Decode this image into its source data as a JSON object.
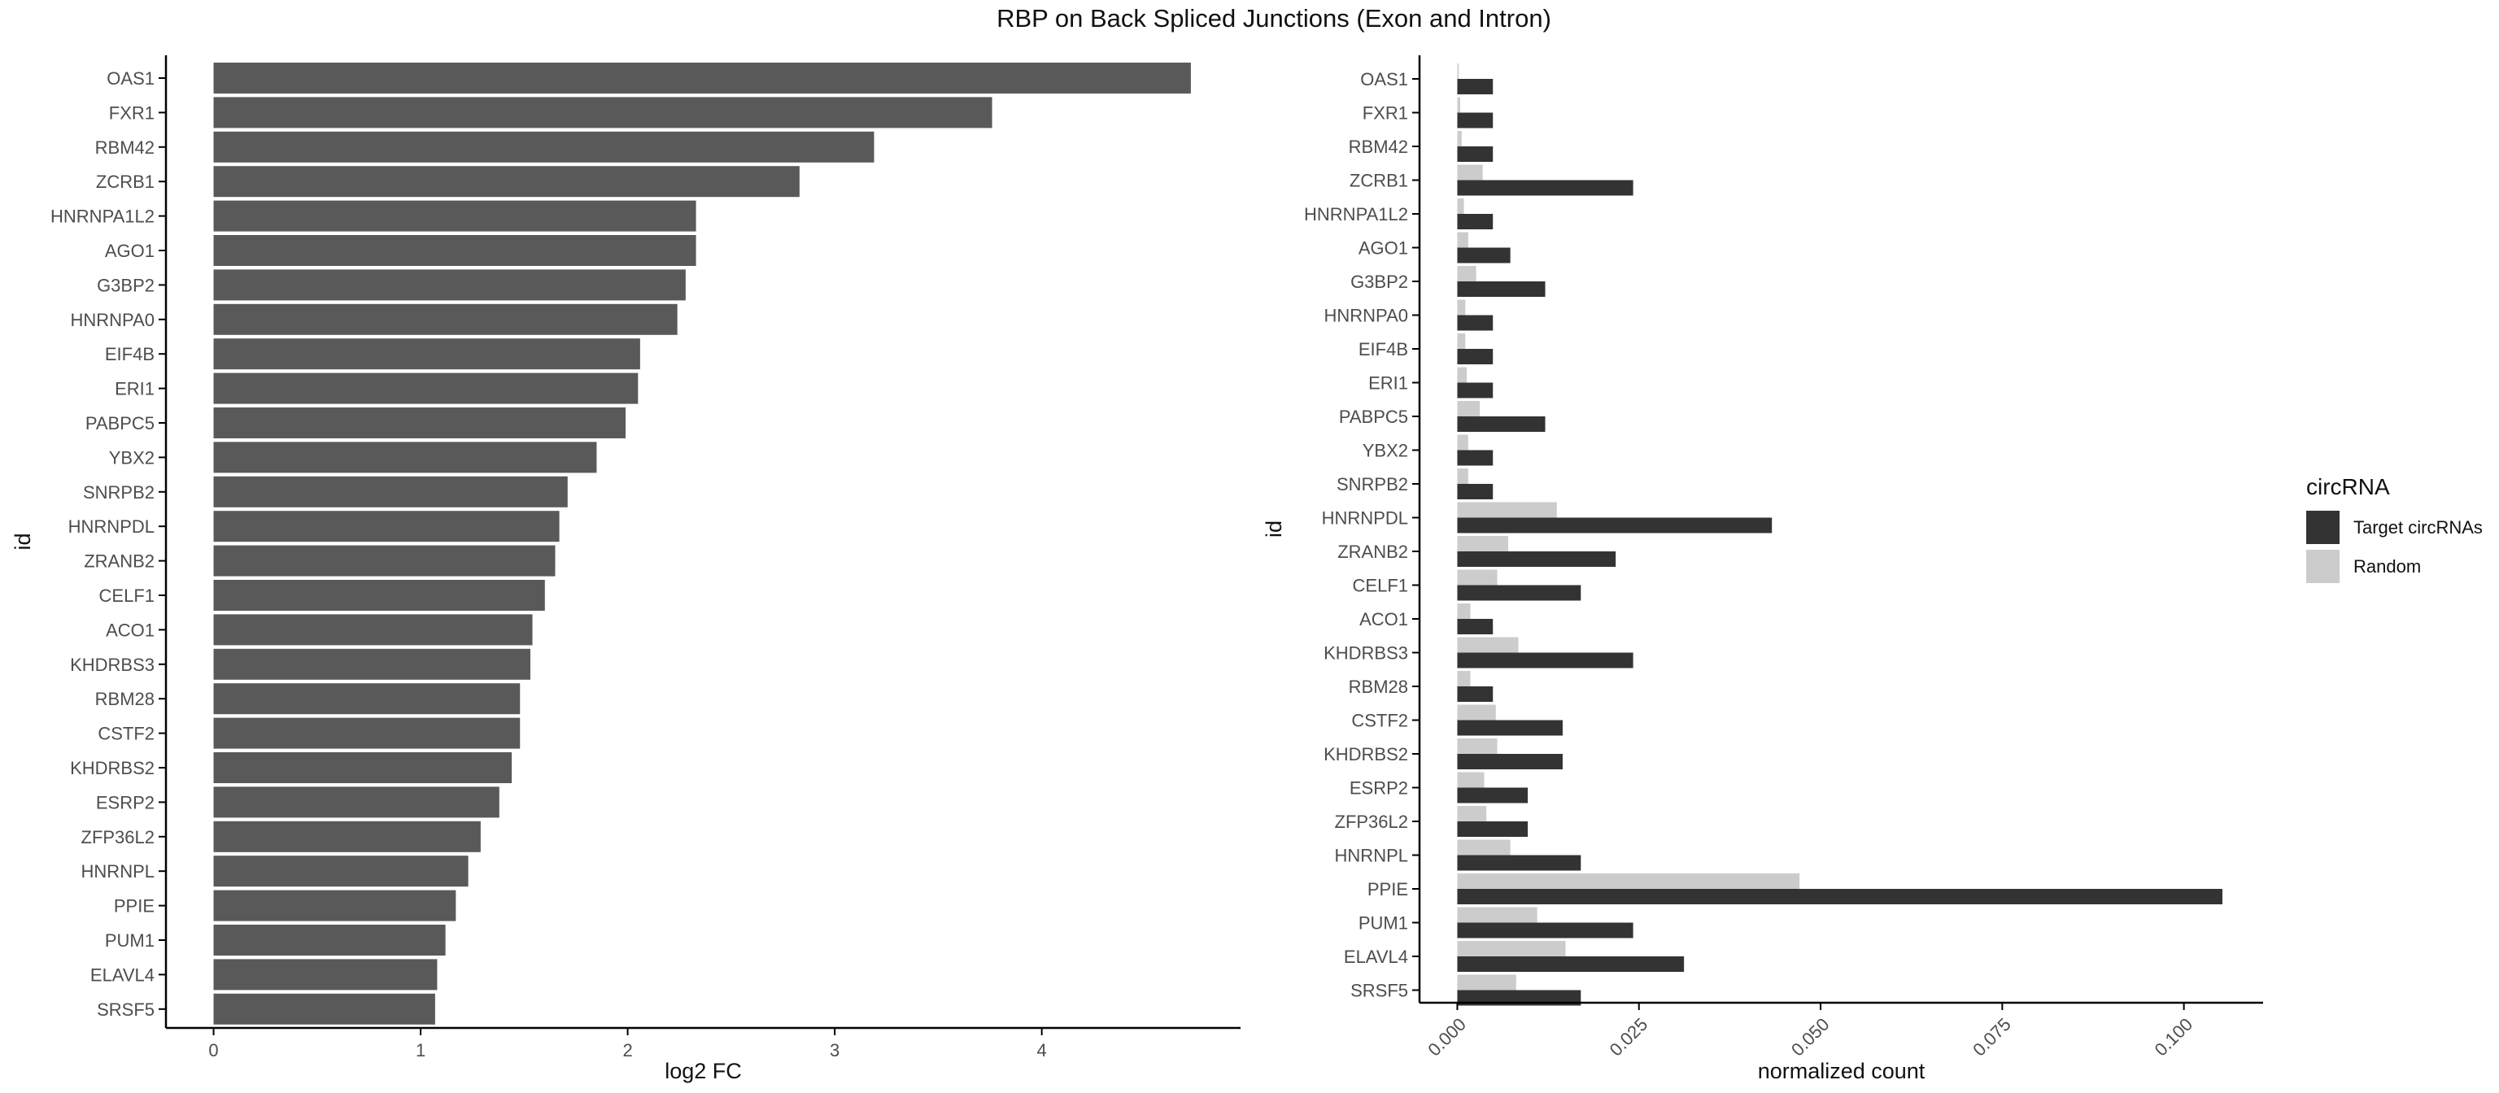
{
  "title": "RBP on Back Spliced Junctions (Exon and Intron)",
  "colors": {
    "left_bar": "#595959",
    "target": "#333333",
    "random": "#cccccc",
    "axis": "#000000"
  },
  "chart_data": [
    {
      "type": "bar",
      "orientation": "horizontal",
      "xlabel": "log2 FC",
      "ylabel": "id",
      "categories": [
        "OAS1",
        "FXR1",
        "RBM42",
        "ZCRB1",
        "HNRNPA1L2",
        "AGO1",
        "G3BP2",
        "HNRNPA0",
        "EIF4B",
        "ERI1",
        "PABPC5",
        "YBX2",
        "SNRPB2",
        "HNRNPDL",
        "ZRANB2",
        "CELF1",
        "ACO1",
        "KHDRBS3",
        "RBM28",
        "CSTF2",
        "KHDRBS2",
        "ESRP2",
        "ZFP36L2",
        "HNRNPL",
        "PPIE",
        "PUM1",
        "ELAVL4",
        "SRSF5"
      ],
      "values": [
        4.72,
        3.76,
        3.19,
        2.83,
        2.33,
        2.33,
        2.28,
        2.24,
        2.06,
        2.05,
        1.99,
        1.85,
        1.71,
        1.67,
        1.65,
        1.6,
        1.54,
        1.53,
        1.48,
        1.48,
        1.44,
        1.38,
        1.29,
        1.23,
        1.17,
        1.12,
        1.08,
        1.07
      ],
      "xlim": [
        -0.23,
        4.96
      ],
      "xticks": [
        0,
        1,
        2,
        3,
        4
      ],
      "xtick_labels": [
        "0",
        "1",
        "2",
        "3",
        "4"
      ],
      "grid": false
    },
    {
      "type": "bar",
      "orientation": "horizontal",
      "grouped": true,
      "xlabel": "normalized count",
      "ylabel": "id",
      "categories": [
        "OAS1",
        "FXR1",
        "RBM42",
        "ZCRB1",
        "HNRNPA1L2",
        "AGO1",
        "G3BP2",
        "HNRNPA0",
        "EIF4B",
        "ERI1",
        "PABPC5",
        "YBX2",
        "SNRPB2",
        "HNRNPDL",
        "ZRANB2",
        "CELF1",
        "ACO1",
        "KHDRBS3",
        "RBM28",
        "CSTF2",
        "KHDRBS2",
        "ESRP2",
        "ZFP36L2",
        "HNRNPL",
        "PPIE",
        "PUM1",
        "ELAVL4",
        "SRSF5"
      ],
      "series": [
        {
          "name": "Target circRNAs",
          "color": "#333333",
          "values": [
            0.0049,
            0.0049,
            0.0049,
            0.0242,
            0.0049,
            0.0073,
            0.0121,
            0.0049,
            0.0049,
            0.0049,
            0.0121,
            0.0049,
            0.0049,
            0.0433,
            0.0218,
            0.017,
            0.0049,
            0.0242,
            0.0049,
            0.0145,
            0.0145,
            0.0097,
            0.0097,
            0.017,
            0.1053,
            0.0242,
            0.0312,
            0.017
          ]
        },
        {
          "name": "Random",
          "color": "#cccccc",
          "values": [
            0.0002,
            0.0004,
            0.0006,
            0.0035,
            0.0009,
            0.0015,
            0.0026,
            0.0011,
            0.0011,
            0.0013,
            0.0031,
            0.0015,
            0.0015,
            0.0137,
            0.007,
            0.0055,
            0.0018,
            0.0084,
            0.0018,
            0.0053,
            0.0055,
            0.0037,
            0.004,
            0.0073,
            0.0471,
            0.011,
            0.0149,
            0.0081
          ]
        }
      ],
      "xlim": [
        -0.0052,
        0.1109
      ],
      "xticks": [
        0,
        0.025,
        0.05,
        0.075,
        0.1
      ],
      "xtick_labels": [
        "0.000",
        "0.025",
        "0.050",
        "0.075",
        "0.100"
      ],
      "legend_title": "circRNA",
      "legend_position": "right",
      "grid": false
    }
  ]
}
